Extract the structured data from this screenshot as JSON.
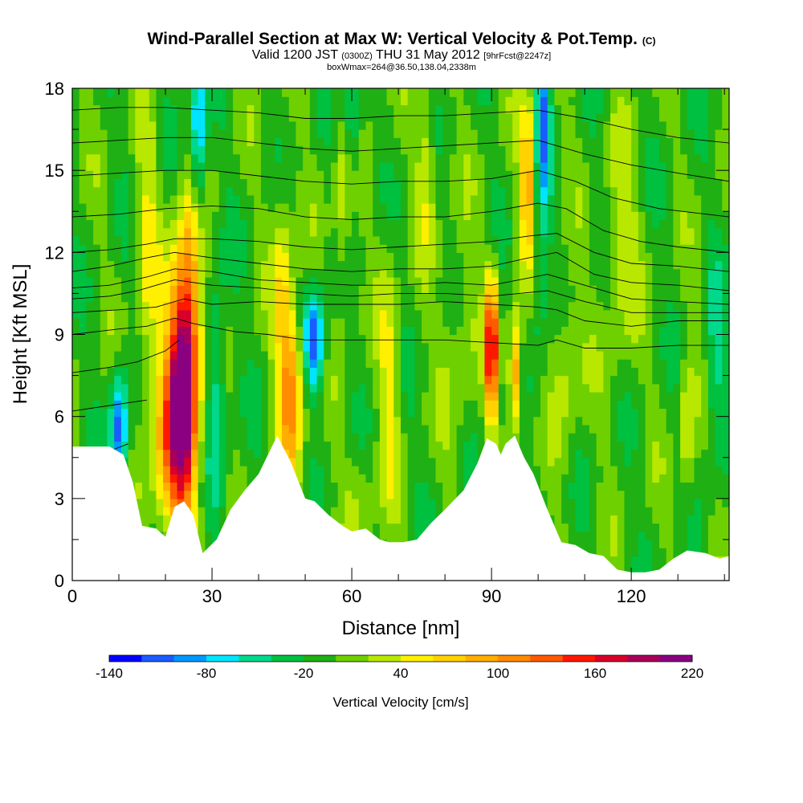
{
  "header": {
    "title": "Wind-Parallel Section at Max W: Vertical Velocity & Pot.Temp.",
    "title_mark": "(C)",
    "valid_prefix": "Valid 1200 JST",
    "valid_utc": "(0300Z)",
    "valid_date": "THU 31 May 2012",
    "forecast": "[9hrFcst@2247z]",
    "box_info": "boxWmax=264@36.50,138.04,2338m"
  },
  "chart_data": {
    "type": "heatmap",
    "xlabel": "Distance [nm]",
    "ylabel": "Height [Kft MSL]",
    "xlim": [
      0,
      141
    ],
    "ylim": [
      0,
      18
    ],
    "x_ticks": [
      0,
      30,
      60,
      90,
      120
    ],
    "y_ticks": [
      0,
      3,
      6,
      9,
      12,
      15,
      18
    ],
    "colorbar": {
      "title": "Vertical Velocity [cm/s]",
      "range": [
        -140,
        220
      ],
      "tick_labels": [
        "-140",
        "-80",
        "-20",
        "40",
        "100",
        "160",
        "220"
      ],
      "colors": [
        "#0000ff",
        "#1a5cff",
        "#0099ff",
        "#00e5ff",
        "#00d98c",
        "#00c040",
        "#1fb014",
        "#6fd000",
        "#b8e800",
        "#fff000",
        "#ffd200",
        "#ffae00",
        "#ff8c00",
        "#ff5a00",
        "#ff1800",
        "#d8002a",
        "#a8005a",
        "#8a0080"
      ]
    },
    "background_value": -5,
    "terrain_height_kft": [
      [
        0,
        4.9
      ],
      [
        8,
        4.9
      ],
      [
        11,
        4.6
      ],
      [
        13,
        3.6
      ],
      [
        15,
        2.0
      ],
      [
        18,
        1.9
      ],
      [
        20,
        1.6
      ],
      [
        22,
        2.7
      ],
      [
        24,
        2.9
      ],
      [
        26,
        2.4
      ],
      [
        28,
        1.0
      ],
      [
        31,
        1.5
      ],
      [
        34,
        2.6
      ],
      [
        37,
        3.3
      ],
      [
        40,
        3.9
      ],
      [
        42,
        4.6
      ],
      [
        44,
        5.3
      ],
      [
        47,
        4.3
      ],
      [
        50,
        3.0
      ],
      [
        52,
        2.9
      ],
      [
        55,
        2.4
      ],
      [
        58,
        2.0
      ],
      [
        60,
        1.8
      ],
      [
        63,
        1.9
      ],
      [
        66,
        1.5
      ],
      [
        68,
        1.4
      ],
      [
        71,
        1.4
      ],
      [
        74,
        1.5
      ],
      [
        77,
        2.1
      ],
      [
        80,
        2.6
      ],
      [
        84,
        3.3
      ],
      [
        87,
        4.3
      ],
      [
        89,
        5.2
      ],
      [
        91,
        5.0
      ],
      [
        92,
        4.6
      ],
      [
        93,
        5.0
      ],
      [
        95,
        5.3
      ],
      [
        97,
        4.5
      ],
      [
        99,
        3.9
      ],
      [
        102,
        2.6
      ],
      [
        105,
        1.4
      ],
      [
        108,
        1.3
      ],
      [
        111,
        1.0
      ],
      [
        114,
        0.9
      ],
      [
        117,
        0.4
      ],
      [
        120,
        0.3
      ],
      [
        123,
        0.3
      ],
      [
        126,
        0.4
      ],
      [
        129,
        0.8
      ],
      [
        132,
        1.1
      ],
      [
        136,
        1.0
      ],
      [
        139,
        0.8
      ],
      [
        141,
        0.9
      ]
    ],
    "velocity_features": [
      {
        "x": 24,
        "z": 7.5,
        "sx": 2.2,
        "sz": 3.2,
        "amp": 225
      },
      {
        "x": 21,
        "z": 5.0,
        "sx": 3.0,
        "sz": 2.5,
        "amp": 95
      },
      {
        "x": 26,
        "z": 12.5,
        "sx": 1.6,
        "sz": 2.5,
        "amp": 60
      },
      {
        "x": 16,
        "z": 12.0,
        "sx": 1.8,
        "sz": 4.0,
        "amp": 45
      },
      {
        "x": 10,
        "z": 5.5,
        "sx": 1.3,
        "sz": 1.5,
        "amp": -110
      },
      {
        "x": 27,
        "z": 16.0,
        "sx": 1.3,
        "sz": 2.5,
        "amp": -100
      },
      {
        "x": 31,
        "z": 7.0,
        "sx": 1.5,
        "sz": 3.0,
        "amp": -55
      },
      {
        "x": 47,
        "z": 7.0,
        "sx": 1.8,
        "sz": 2.2,
        "amp": 115
      },
      {
        "x": 45,
        "z": 11.0,
        "sx": 1.5,
        "sz": 2.5,
        "amp": 55
      },
      {
        "x": 52,
        "z": 8.8,
        "sx": 1.5,
        "sz": 1.3,
        "amp": -110
      },
      {
        "x": 58,
        "z": 14.0,
        "sx": 1.3,
        "sz": 3.0,
        "amp": 45
      },
      {
        "x": 60,
        "z": 17.0,
        "sx": 1.5,
        "sz": 1.5,
        "amp": -60
      },
      {
        "x": 68,
        "z": 7.5,
        "sx": 1.5,
        "sz": 3.5,
        "amp": 45
      },
      {
        "x": 76,
        "z": 15.5,
        "sx": 1.5,
        "sz": 2.5,
        "amp": 40
      },
      {
        "x": 90,
        "z": 8.5,
        "sx": 0.9,
        "sz": 1.8,
        "amp": 190
      },
      {
        "x": 95,
        "z": 7.5,
        "sx": 0.9,
        "sz": 1.5,
        "amp": 120
      },
      {
        "x": 98,
        "z": 14.5,
        "sx": 1.3,
        "sz": 2.2,
        "amp": 110
      },
      {
        "x": 100,
        "z": 12.0,
        "sx": 1.5,
        "sz": 3.0,
        "amp": -50
      },
      {
        "x": 101,
        "z": 17.0,
        "sx": 1.2,
        "sz": 1.8,
        "amp": -85
      },
      {
        "x": 106,
        "z": 8.0,
        "sx": 2.5,
        "sz": 2.0,
        "amp": 40
      },
      {
        "x": 118,
        "z": 12.0,
        "sx": 2.5,
        "sz": 3.0,
        "amp": 40
      },
      {
        "x": 132,
        "z": 5.5,
        "sx": 1.2,
        "sz": 2.0,
        "amp": 50
      },
      {
        "x": 138,
        "z": 7.5,
        "sx": 1.5,
        "sz": 2.5,
        "amp": -45
      },
      {
        "x": 62,
        "z": 3.0,
        "sx": 2.5,
        "sz": 1.5,
        "amp": 25
      },
      {
        "x": 83,
        "z": 9.0,
        "sx": 3.0,
        "sz": 3.0,
        "amp": 25
      }
    ],
    "isentropes": [
      {
        "label": "",
        "pts": [
          [
            0,
            3
          ],
          [
            8,
            3
          ],
          [
            13,
            3
          ]
        ]
      },
      {
        "label": "",
        "pts": [
          [
            0,
            4.5
          ],
          [
            6,
            4.5
          ],
          [
            9,
            4.8
          ],
          [
            12,
            5.0
          ]
        ]
      },
      {
        "label": "",
        "pts": [
          [
            0,
            6.2
          ],
          [
            8,
            6.4
          ],
          [
            12,
            6.5
          ],
          [
            16,
            6.6
          ]
        ]
      },
      {
        "label": "",
        "pts": [
          [
            0,
            7.6
          ],
          [
            8,
            7.8
          ],
          [
            14,
            8.0
          ],
          [
            20,
            8.4
          ],
          [
            23,
            8.8
          ]
        ]
      },
      {
        "label": "",
        "pts": [
          [
            0,
            9.0
          ],
          [
            10,
            9.2
          ],
          [
            16,
            9.3
          ],
          [
            22,
            9.6
          ],
          [
            26,
            9.4
          ],
          [
            35,
            9.1
          ],
          [
            42,
            9.0
          ],
          [
            50,
            8.8
          ],
          [
            60,
            8.8
          ],
          [
            70,
            8.8
          ],
          [
            80,
            8.8
          ],
          [
            90,
            8.7
          ],
          [
            100,
            8.6
          ],
          [
            104,
            8.8
          ],
          [
            110,
            8.5
          ],
          [
            120,
            8.5
          ],
          [
            130,
            8.6
          ],
          [
            141,
            8.6
          ]
        ]
      },
      {
        "label": "",
        "pts": [
          [
            0,
            9.8
          ],
          [
            10,
            9.9
          ],
          [
            18,
            10.0
          ],
          [
            24,
            10.3
          ],
          [
            30,
            10.1
          ],
          [
            40,
            10.2
          ],
          [
            50,
            10.1
          ],
          [
            60,
            10.1
          ],
          [
            70,
            10.1
          ],
          [
            80,
            10.2
          ],
          [
            90,
            10.1
          ],
          [
            100,
            10.0
          ],
          [
            104,
            9.9
          ],
          [
            110,
            9.5
          ],
          [
            120,
            9.3
          ],
          [
            130,
            9.5
          ],
          [
            141,
            9.5
          ]
        ]
      },
      {
        "label": "",
        "pts": [
          [
            0,
            10.3
          ],
          [
            8,
            10.4
          ],
          [
            14,
            10.6
          ],
          [
            22,
            11.0
          ],
          [
            30,
            10.8
          ],
          [
            40,
            10.7
          ],
          [
            50,
            10.5
          ],
          [
            60,
            10.4
          ],
          [
            70,
            10.5
          ],
          [
            80,
            10.5
          ],
          [
            90,
            10.4
          ],
          [
            96,
            10.5
          ],
          [
            102,
            10.6
          ],
          [
            110,
            10.2
          ],
          [
            120,
            9.8
          ],
          [
            130,
            9.8
          ],
          [
            141,
            9.8
          ]
        ]
      },
      {
        "label": "",
        "pts": [
          [
            0,
            10.7
          ],
          [
            8,
            10.8
          ],
          [
            16,
            11.1
          ],
          [
            22,
            11.4
          ],
          [
            30,
            11.3
          ],
          [
            40,
            11.0
          ],
          [
            50,
            10.9
          ],
          [
            60,
            10.8
          ],
          [
            70,
            10.8
          ],
          [
            80,
            10.9
          ],
          [
            90,
            10.8
          ],
          [
            96,
            11.0
          ],
          [
            102,
            11.2
          ],
          [
            110,
            10.8
          ],
          [
            120,
            10.3
          ],
          [
            130,
            10.2
          ],
          [
            141,
            10.1
          ]
        ]
      },
      {
        "label": "",
        "pts": [
          [
            0,
            11.3
          ],
          [
            8,
            11.5
          ],
          [
            16,
            11.8
          ],
          [
            22,
            12.0
          ],
          [
            30,
            11.8
          ],
          [
            40,
            11.6
          ],
          [
            50,
            11.4
          ],
          [
            60,
            11.3
          ],
          [
            70,
            11.4
          ],
          [
            80,
            11.4
          ],
          [
            90,
            11.5
          ],
          [
            98,
            11.8
          ],
          [
            104,
            12.0
          ],
          [
            112,
            11.2
          ],
          [
            120,
            10.9
          ],
          [
            130,
            10.8
          ],
          [
            141,
            10.6
          ]
        ]
      },
      {
        "label": "",
        "pts": [
          [
            0,
            12.0
          ],
          [
            8,
            12.1
          ],
          [
            16,
            12.3
          ],
          [
            22,
            12.5
          ],
          [
            30,
            12.5
          ],
          [
            40,
            12.4
          ],
          [
            50,
            12.2
          ],
          [
            60,
            12.1
          ],
          [
            70,
            12.2
          ],
          [
            80,
            12.3
          ],
          [
            90,
            12.4
          ],
          [
            98,
            12.6
          ],
          [
            104,
            12.7
          ],
          [
            112,
            12.0
          ],
          [
            120,
            11.6
          ],
          [
            130,
            11.5
          ],
          [
            141,
            11.3
          ]
        ]
      },
      {
        "label": "",
        "pts": [
          [
            0,
            13.3
          ],
          [
            10,
            13.4
          ],
          [
            20,
            13.6
          ],
          [
            30,
            13.7
          ],
          [
            40,
            13.6
          ],
          [
            50,
            13.3
          ],
          [
            60,
            13.2
          ],
          [
            70,
            13.3
          ],
          [
            80,
            13.3
          ],
          [
            90,
            13.5
          ],
          [
            100,
            13.8
          ],
          [
            106,
            13.6
          ],
          [
            114,
            12.8
          ],
          [
            122,
            12.4
          ],
          [
            130,
            12.2
          ],
          [
            141,
            12.0
          ]
        ]
      },
      {
        "label": "",
        "pts": [
          [
            0,
            14.8
          ],
          [
            10,
            14.9
          ],
          [
            20,
            15.0
          ],
          [
            30,
            15.0
          ],
          [
            40,
            14.8
          ],
          [
            50,
            14.6
          ],
          [
            60,
            14.5
          ],
          [
            70,
            14.6
          ],
          [
            80,
            14.6
          ],
          [
            90,
            14.7
          ],
          [
            100,
            15.0
          ],
          [
            108,
            14.6
          ],
          [
            116,
            14.0
          ],
          [
            126,
            13.6
          ],
          [
            141,
            13.3
          ]
        ]
      },
      {
        "label": "",
        "pts": [
          [
            0,
            16.0
          ],
          [
            10,
            16.1
          ],
          [
            20,
            16.2
          ],
          [
            30,
            16.2
          ],
          [
            40,
            16.0
          ],
          [
            50,
            15.8
          ],
          [
            60,
            15.7
          ],
          [
            70,
            15.8
          ],
          [
            80,
            15.9
          ],
          [
            90,
            16.0
          ],
          [
            100,
            16.1
          ],
          [
            110,
            15.6
          ],
          [
            120,
            15.2
          ],
          [
            130,
            14.9
          ],
          [
            141,
            14.6
          ]
        ]
      },
      {
        "label": "",
        "pts": [
          [
            0,
            17.2
          ],
          [
            10,
            17.3
          ],
          [
            20,
            17.3
          ],
          [
            30,
            17.2
          ],
          [
            40,
            17.1
          ],
          [
            50,
            16.9
          ],
          [
            60,
            16.9
          ],
          [
            70,
            17.0
          ],
          [
            80,
            17.0
          ],
          [
            90,
            17.1
          ],
          [
            100,
            17.2
          ],
          [
            110,
            16.9
          ],
          [
            120,
            16.5
          ],
          [
            130,
            16.2
          ],
          [
            141,
            16.0
          ]
        ]
      }
    ]
  }
}
